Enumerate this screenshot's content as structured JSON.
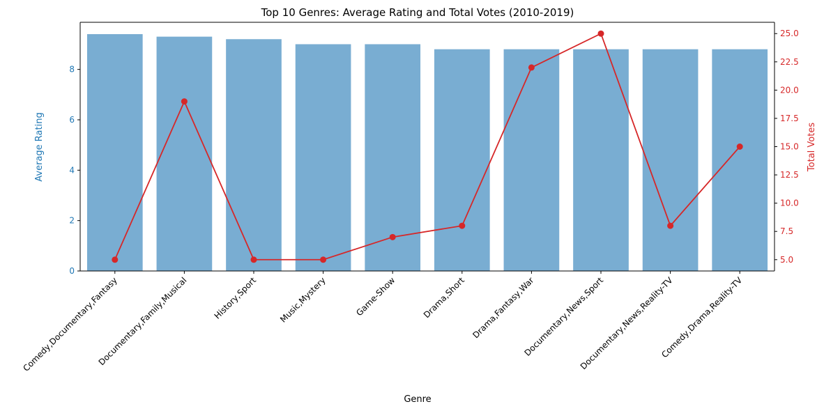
{
  "chart_data": {
    "type": "bar",
    "title": "Top 10 Genres: Average Rating and Total Votes (2010-2019)",
    "xlabel": "Genre",
    "ylabel_left": "Average Rating",
    "ylabel_right": "Total Votes",
    "categories": [
      "Comedy,Documentary,Fantasy",
      "Documentary,Family,Musical",
      "History,Sport",
      "Music,Mystery",
      "Game-Show",
      "Drama,Short",
      "Drama,Fantasy,War",
      "Documentary,News,Sport",
      "Documentary,News,Reality-TV",
      "Comedy,Drama,Reality-TV"
    ],
    "series": [
      {
        "name": "Average Rating",
        "type": "bar",
        "axis": "left",
        "color": "#1f77b4",
        "values": [
          9.4,
          9.3,
          9.2,
          9.0,
          9.0,
          8.8,
          8.8,
          8.8,
          8.8,
          8.8
        ]
      },
      {
        "name": "Total Votes",
        "type": "line",
        "axis": "right",
        "color": "#d62728",
        "values": [
          5,
          19,
          5,
          5,
          7,
          8,
          22,
          25,
          8,
          15
        ]
      }
    ],
    "ylim_left": [
      0,
      9.87
    ],
    "yticks_left": [
      "0",
      "2",
      "4",
      "6",
      "8"
    ],
    "ylim_right": [
      4.0,
      26.0
    ],
    "yticks_right": [
      "5.0",
      "7.5",
      "10.0",
      "12.5",
      "15.0",
      "17.5",
      "20.0",
      "22.5",
      "25.0"
    ],
    "grid": false,
    "colors": {
      "left_axis": "#1f77b4",
      "right_axis": "#d62728",
      "bar": "#1f77b4",
      "line": "#d62728"
    }
  }
}
